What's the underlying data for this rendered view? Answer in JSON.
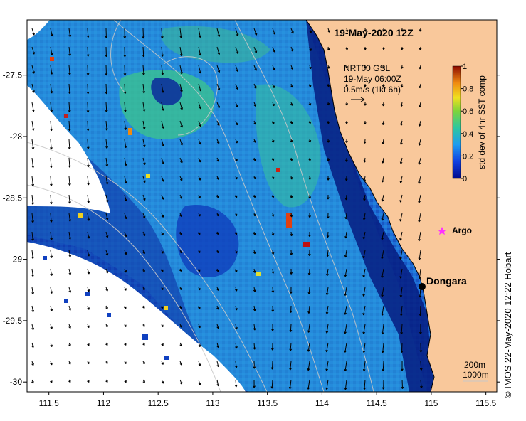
{
  "title": "19-May-2020 12Z",
  "current_note": {
    "line1": "NRT00 GSL",
    "line2": "19-May 06:00Z",
    "line3": "0.5m/s (1kt 6h)"
  },
  "colorbar": {
    "label": "std dev of 4hr SST comp",
    "ticks": [
      "0",
      "0.2",
      "0.4",
      "0.6",
      "0.8",
      "1"
    ],
    "range": [
      0,
      1
    ]
  },
  "x_axis": {
    "ticks": [
      "111.5",
      "112",
      "112.5",
      "113",
      "113.5",
      "114",
      "114.5",
      "115",
      "115.5"
    ],
    "range": [
      111.3,
      115.6
    ]
  },
  "y_axis": {
    "ticks": [
      "-27.5",
      "-28",
      "-28.5",
      "-29",
      "-29.5",
      "-30"
    ],
    "range": [
      -30.08,
      -27.05
    ]
  },
  "places": [
    {
      "name": "Dongara",
      "lon": 114.93,
      "lat": -29.25,
      "color": "#000000"
    },
    {
      "name": "Argo",
      "lon": 115.05,
      "lat": -28.82,
      "color": "#ff33ff"
    }
  ],
  "legend_depth": {
    "line1": "200m",
    "line2": "1000m"
  },
  "credit": "IMOS 22-May-2020 12:22 Hobart",
  "colors": {
    "land": "#f9c89b",
    "no_data": "#ffffff",
    "coast": "#000000",
    "isobath": "#c8c8c8"
  }
}
